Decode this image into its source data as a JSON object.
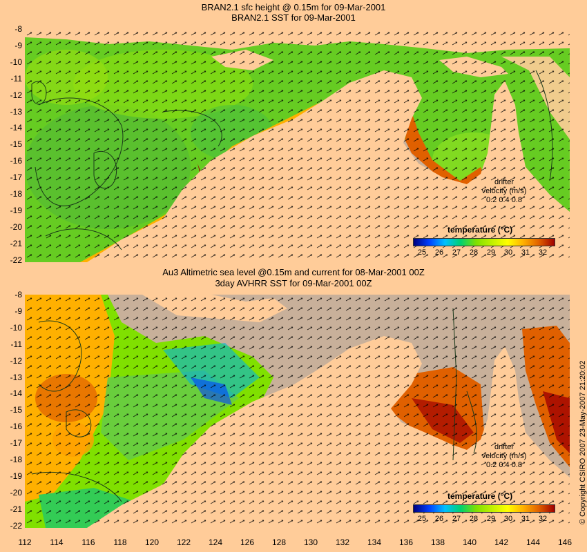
{
  "top_panel": {
    "title_line1": "BRAN2.1 sfc height @ 0.15m for 09-Mar-2001",
    "title_line2": "BRAN2.1 SST for 09-Mar-2001",
    "colorbar_title": "temperature (°C)",
    "colorbar_ticks": [
      "25",
      "26",
      "27",
      "28",
      "29",
      "30",
      "31",
      "32"
    ],
    "drifter_label": "drifter",
    "velocity_label": "velocity (m/s)",
    "velocity_ticks": "0.2  0.4  0.8"
  },
  "bottom_panel": {
    "title_line1": "Au3 Altimetric sea level  @0.15m and current for 08-Mar-2001 00Z",
    "title_line2": "3day AVHRR SST for 09-Mar-2001 00Z",
    "colorbar_title": "temperature (°C)",
    "colorbar_ticks": [
      "25",
      "26",
      "27",
      "28",
      "29",
      "30",
      "31",
      "32"
    ],
    "drifter_label": "drifter",
    "velocity_label": "velocity (m/s)",
    "velocity_ticks": "0.2  0.4  0.8"
  },
  "y_axis_labels": [
    "-8",
    "-9",
    "-10",
    "-11",
    "-12",
    "-13",
    "-14",
    "-15",
    "-16",
    "-17",
    "-18",
    "-19",
    "-20",
    "-21",
    "-22"
  ],
  "x_axis_labels": [
    "112",
    "114",
    "116",
    "118",
    "120",
    "122",
    "124",
    "126",
    "128",
    "130",
    "132",
    "134",
    "136",
    "138",
    "140",
    "142",
    "144",
    "146"
  ],
  "copyright": "© Copyright CSIRO 2007  23-May-2007 21:20:02",
  "colors": {
    "land": "#ffcc99",
    "shelf_grey": "#c8b09a",
    "sst_scale": [
      "#00007f",
      "#0040ff",
      "#00c0ff",
      "#00d070",
      "#80e000",
      "#c0f000",
      "#ffff00",
      "#ffb000",
      "#e06000",
      "#a00000"
    ]
  }
}
